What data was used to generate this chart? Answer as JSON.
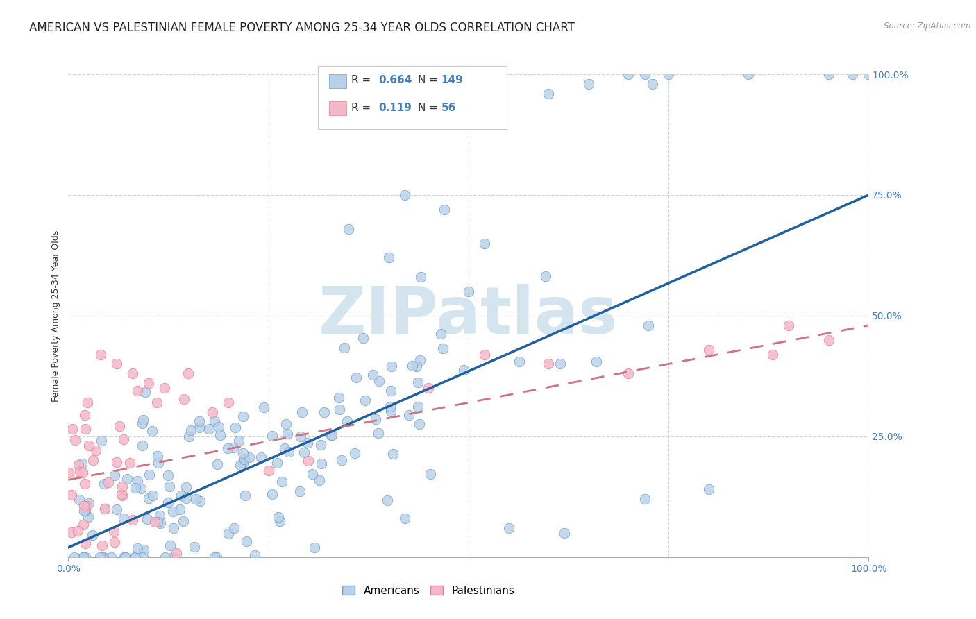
{
  "title": "AMERICAN VS PALESTINIAN FEMALE POVERTY AMONG 25-34 YEAR OLDS CORRELATION CHART",
  "source": "Source: ZipAtlas.com",
  "ylabel": "Female Poverty Among 25-34 Year Olds",
  "american_R": 0.664,
  "american_N": 149,
  "palestinian_R": 0.119,
  "palestinian_N": 56,
  "american_color": "#b8d0e8",
  "american_edge_color": "#6a9ec8",
  "american_line_color": "#2060a0",
  "palestinian_color": "#f5b8c8",
  "palestinian_edge_color": "#e08098",
  "palestinian_line_color": "#d07080",
  "watermark": "ZIPatlas",
  "watermark_color": "#d5e5f0",
  "xlim": [
    0.0,
    1.0
  ],
  "ylim": [
    0.0,
    1.0
  ],
  "grid_color": "#c8d8e4",
  "background_color": "#ffffff",
  "title_fontsize": 12,
  "axis_label_fontsize": 9,
  "legend_fontsize": 11,
  "tick_fontsize": 10,
  "tick_color": "#4080c0"
}
